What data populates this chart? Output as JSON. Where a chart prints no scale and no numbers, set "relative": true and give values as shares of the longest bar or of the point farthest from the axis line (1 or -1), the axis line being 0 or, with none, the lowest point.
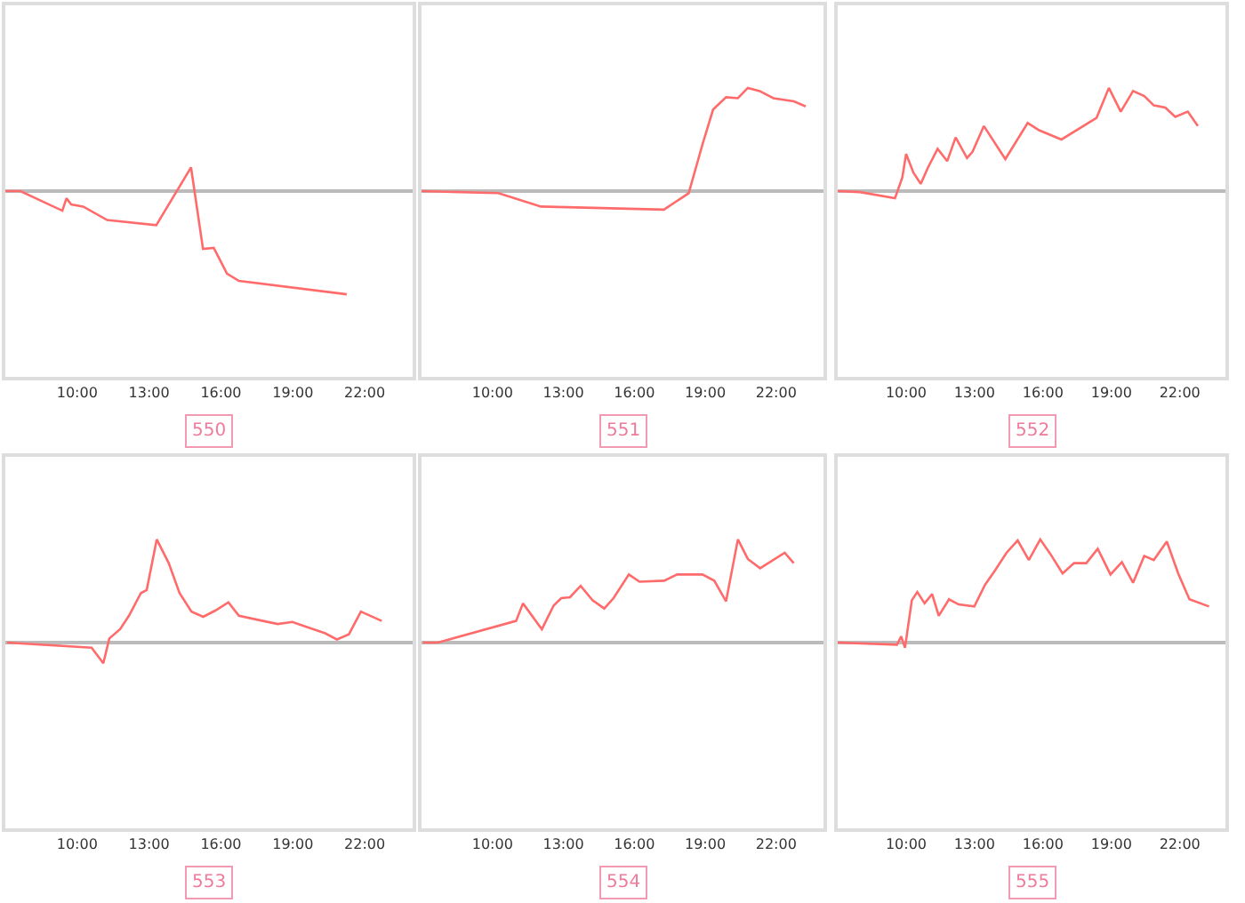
{
  "chart_data": [
    {
      "type": "line",
      "relative": true,
      "xlabel": "550",
      "tick_labels": "x",
      "xlim": [
        7,
        24
      ],
      "xticks": [
        {
          "value": 10,
          "label": "10:00"
        },
        {
          "value": 13,
          "label": "13:00"
        },
        {
          "value": 16,
          "label": "16:00"
        },
        {
          "value": 19,
          "label": "19:00"
        },
        {
          "value": 22,
          "label": "22:00"
        }
      ],
      "x": [
        7.0,
        7.63,
        9.38,
        9.55,
        9.75,
        10.25,
        11.25,
        13.3,
        14.75,
        15.25,
        15.7,
        16.25,
        16.75,
        21.25
      ],
      "series": [
        {
          "color": "#ff6b6b",
          "values": [
            0,
            0,
            -0.19,
            -0.07,
            -0.13,
            -0.15,
            -0.28,
            -0.33,
            0.23,
            -0.56,
            -0.55,
            -0.8,
            -0.87,
            -1
          ]
        }
      ]
    },
    {
      "type": "line",
      "relative": true,
      "xlabel": "551",
      "tick_labels": "x",
      "xlim": [
        7,
        24
      ],
      "xticks": [
        {
          "value": 10,
          "label": "10:00"
        },
        {
          "value": 13,
          "label": "13:00"
        },
        {
          "value": 16,
          "label": "16:00"
        },
        {
          "value": 19,
          "label": "19:00"
        },
        {
          "value": 22,
          "label": "22:00"
        }
      ],
      "x": [
        7.0,
        10.25,
        12.05,
        17.25,
        18.3,
        18.88,
        19.33,
        19.88,
        20.38,
        20.8,
        21.3,
        21.88,
        22.75,
        23.25
      ],
      "series": [
        {
          "color": "#ff6b6b",
          "values": [
            0,
            -0.02,
            -0.15,
            -0.18,
            -0.02,
            0.45,
            0.79,
            0.91,
            0.9,
            1,
            0.97,
            0.9,
            0.87,
            0.82
          ]
        }
      ]
    },
    {
      "type": "line",
      "relative": true,
      "xlabel": "552",
      "tick_labels": "x",
      "xlim": [
        7,
        24
      ],
      "xticks": [
        {
          "value": 10,
          "label": "10:00"
        },
        {
          "value": 13,
          "label": "13:00"
        },
        {
          "value": 16,
          "label": "16:00"
        },
        {
          "value": 19,
          "label": "19:00"
        },
        {
          "value": 22,
          "label": "22:00"
        }
      ],
      "x": [
        7.0,
        7.98,
        9.51,
        9.83,
        10,
        10.32,
        10.64,
        10.94,
        11.38,
        11.8,
        12.17,
        12.67,
        12.91,
        13.41,
        14.35,
        15.33,
        15.83,
        16.81,
        18.35,
        18.89,
        19.41,
        19.95,
        20.44,
        20.86,
        21.36,
        21.8,
        22.35,
        22.79
      ],
      "series": [
        {
          "color": "#ff6b6b",
          "values": [
            0,
            -0.01,
            -0.07,
            0.13,
            0.36,
            0.18,
            0.07,
            0.22,
            0.41,
            0.29,
            0.52,
            0.32,
            0.38,
            0.63,
            0.31,
            0.66,
            0.59,
            0.5,
            0.71,
            1,
            0.77,
            0.97,
            0.92,
            0.83,
            0.81,
            0.72,
            0.77,
            0.63
          ]
        }
      ]
    },
    {
      "type": "line",
      "relative": true,
      "xlabel": "553",
      "tick_labels": "x",
      "xlim": [
        7,
        24
      ],
      "xticks": [
        {
          "value": 10,
          "label": "10:00"
        },
        {
          "value": 13,
          "label": "13:00"
        },
        {
          "value": 16,
          "label": "16:00"
        },
        {
          "value": 19,
          "label": "19:00"
        },
        {
          "value": 22,
          "label": "22:00"
        }
      ],
      "x": [
        7.07,
        10.6,
        11.09,
        11.34,
        11.79,
        12.16,
        12.66,
        12.9,
        13.32,
        13.82,
        14.27,
        14.77,
        15.26,
        15.76,
        16.31,
        16.75,
        17.75,
        18.37,
        18.98,
        19.48,
        20.35,
        20.84,
        21.34,
        21.84,
        22.71
      ],
      "series": [
        {
          "color": "#ff6b6b",
          "values": [
            0,
            -0.05,
            -0.2,
            0.04,
            0.13,
            0.26,
            0.48,
            0.51,
            1,
            0.77,
            0.48,
            0.3,
            0.25,
            0.31,
            0.39,
            0.26,
            0.21,
            0.18,
            0.2,
            0.16,
            0.09,
            0.03,
            0.08,
            0.3,
            0.21
          ]
        }
      ]
    },
    {
      "type": "line",
      "relative": true,
      "xlabel": "554",
      "tick_labels": "x",
      "xlim": [
        7,
        24
      ],
      "xticks": [
        {
          "value": 10,
          "label": "10:00"
        },
        {
          "value": 13,
          "label": "13:00"
        },
        {
          "value": 16,
          "label": "16:00"
        },
        {
          "value": 19,
          "label": "19:00"
        },
        {
          "value": 22,
          "label": "22:00"
        }
      ],
      "x": [
        7.06,
        7.69,
        11,
        11.29,
        12.09,
        12.59,
        12.91,
        13.28,
        13.73,
        14.23,
        14.73,
        15.12,
        15.77,
        16.22,
        17.26,
        17.81,
        18.88,
        19.38,
        19.88,
        20.38,
        20.8,
        21.32,
        22.36,
        22.74
      ],
      "series": [
        {
          "color": "#ff6b6b",
          "values": [
            0,
            0,
            0.21,
            0.38,
            0.13,
            0.36,
            0.43,
            0.44,
            0.55,
            0.41,
            0.33,
            0.43,
            0.66,
            0.59,
            0.6,
            0.66,
            0.66,
            0.6,
            0.4,
            1,
            0.81,
            0.72,
            0.87,
            0.77
          ]
        }
      ]
    },
    {
      "type": "line",
      "relative": true,
      "xlabel": "555",
      "tick_labels": "x",
      "xlim": [
        7,
        24
      ],
      "xticks": [
        {
          "value": 10,
          "label": "10:00"
        },
        {
          "value": 13,
          "label": "13:00"
        },
        {
          "value": 16,
          "label": "16:00"
        },
        {
          "value": 19,
          "label": "19:00"
        },
        {
          "value": 22,
          "label": "22:00"
        }
      ],
      "x": [
        7.0,
        9.6,
        9.78,
        9.95,
        10.25,
        10.49,
        10.81,
        11.14,
        11.43,
        11.88,
        12.3,
        12.99,
        13.46,
        13.9,
        14.4,
        14.89,
        15.38,
        15.88,
        16.32,
        16.86,
        17.36,
        17.9,
        18.4,
        18.96,
        19.46,
        19.95,
        20.44,
        20.86,
        21.43,
        21.93,
        22.42,
        23.28
      ],
      "series": [
        {
          "color": "#ff6b6b",
          "values": [
            0,
            -0.02,
            0.06,
            -0.05,
            0.41,
            0.49,
            0.38,
            0.47,
            0.26,
            0.42,
            0.37,
            0.35,
            0.56,
            0.7,
            0.87,
            0.99,
            0.8,
            1,
            0.86,
            0.67,
            0.77,
            0.77,
            0.91,
            0.66,
            0.78,
            0.58,
            0.84,
            0.8,
            0.98,
            0.67,
            0.42,
            0.35
          ]
        }
      ]
    }
  ]
}
